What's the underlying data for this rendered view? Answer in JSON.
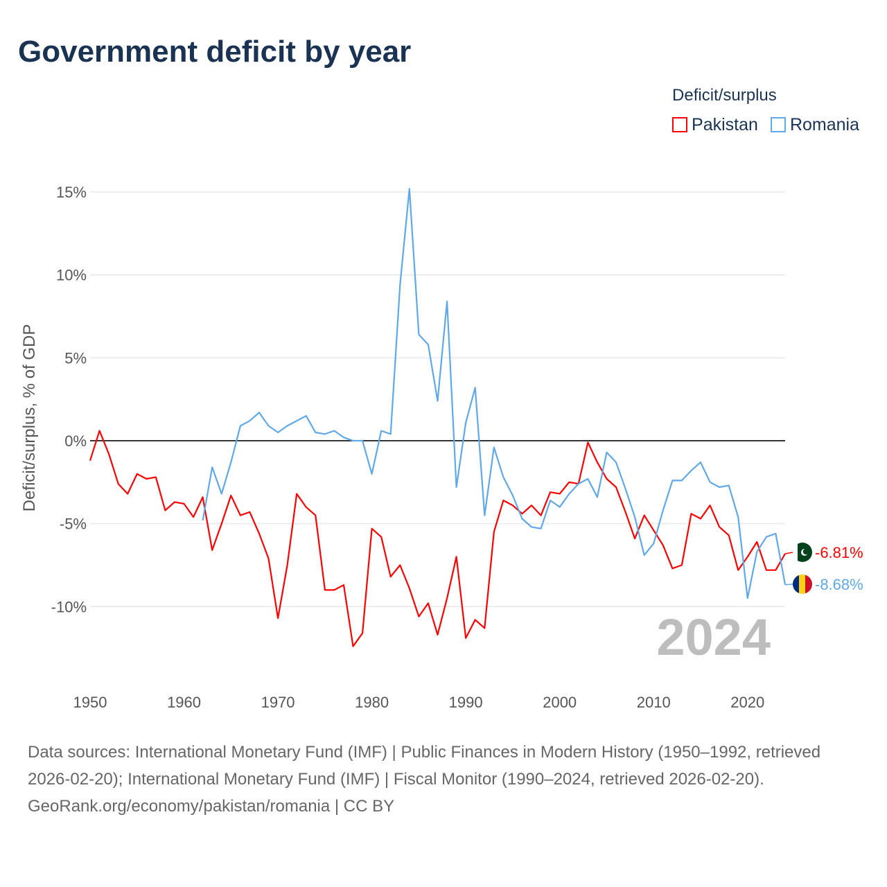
{
  "title": "Government deficit by year",
  "legend": {
    "title": "Deficit/surplus",
    "items": [
      {
        "name": "Pakistan",
        "color": "#ff0000"
      },
      {
        "name": "Romania",
        "color": "#5fa8ea"
      }
    ]
  },
  "chart_data": {
    "type": "line",
    "title": "Government deficit by year",
    "xlabel": "",
    "ylabel": "Deficit/surplus, % of GDP",
    "xlim": [
      1950,
      2024
    ],
    "ylim": [
      -13,
      16
    ],
    "x_ticks": [
      1950,
      1960,
      1970,
      1980,
      1990,
      2000,
      2010,
      2020
    ],
    "y_ticks": [
      15,
      10,
      5,
      0,
      -5,
      -10
    ],
    "y_tick_labels": [
      "15%",
      "10%",
      "5%",
      "0%",
      "-5%",
      "-10%"
    ],
    "x_tick_labels": [
      "1950",
      "1960",
      "1970",
      "1980",
      "1990",
      "2000",
      "2010",
      "2020"
    ],
    "year_watermark": "2024",
    "grid": true,
    "legend_position": "top-right",
    "series": [
      {
        "name": "Pakistan",
        "color": "#ff0000",
        "start_year": 1950,
        "end_label": "-6.81%",
        "values": [
          -1.2,
          0.6,
          -0.8,
          -2.6,
          -3.2,
          -2.0,
          -2.3,
          -2.2,
          -4.2,
          -3.7,
          -3.8,
          -4.6,
          -3.4,
          -6.6,
          -5.0,
          -3.3,
          -4.5,
          -4.3,
          -5.6,
          -7.1,
          -10.7,
          -7.5,
          -3.2,
          -4.0,
          -4.5,
          -9.0,
          -9.0,
          -8.7,
          -12.4,
          -11.6,
          -5.3,
          -5.8,
          -8.2,
          -7.5,
          -8.9,
          -10.6,
          -9.8,
          -11.7,
          -9.5,
          -7.0,
          -11.9,
          -10.8,
          -11.3,
          -5.5,
          -3.6,
          -3.9,
          -4.4,
          -3.9,
          -4.5,
          -3.1,
          -3.2,
          -2.5,
          -2.6,
          -0.1,
          -1.3,
          -2.3,
          -2.8,
          -4.3,
          -5.9,
          -4.5,
          -5.4,
          -6.3,
          -7.7,
          -7.5,
          -4.4,
          -4.7,
          -3.9,
          -5.2,
          -5.7,
          -7.8,
          -7.0,
          -6.1,
          -7.8,
          -7.8,
          -6.81
        ]
      },
      {
        "name": "Romania",
        "color": "#5fa8ea",
        "start_year": 1962,
        "end_label": "-8.68%",
        "values": [
          -4.8,
          -1.6,
          -3.2,
          -1.3,
          0.9,
          1.2,
          1.7,
          0.9,
          0.5,
          0.9,
          1.2,
          1.5,
          0.5,
          0.4,
          0.6,
          0.2,
          0.0,
          0.0,
          -2.0,
          0.6,
          0.4,
          9.4,
          15.2,
          6.4,
          5.8,
          2.4,
          8.4,
          -2.8,
          1.1,
          3.2,
          -4.5,
          -0.4,
          -2.2,
          -3.3,
          -4.7,
          -5.2,
          -5.3,
          -3.6,
          -4.0,
          -3.2,
          -2.6,
          -2.3,
          -3.4,
          -0.7,
          -1.3,
          -2.9,
          -4.6,
          -6.9,
          -6.2,
          -4.2,
          -2.4,
          -2.4,
          -1.8,
          -1.3,
          -2.5,
          -2.8,
          -2.7,
          -4.6,
          -9.5,
          -6.7,
          -5.8,
          -5.6,
          -8.68
        ]
      }
    ]
  },
  "footer": {
    "sources": "Data sources: International Monetary Fund (IMF) | Public Finances in Modern History (1950–1992, retrieved 2026-02-20); International Monetary Fund (IMF) | Fiscal Monitor (1990–2024, retrieved 2026-02-20).",
    "credit": "GeoRank.org/economy/pakistan/romania | CC BY"
  }
}
